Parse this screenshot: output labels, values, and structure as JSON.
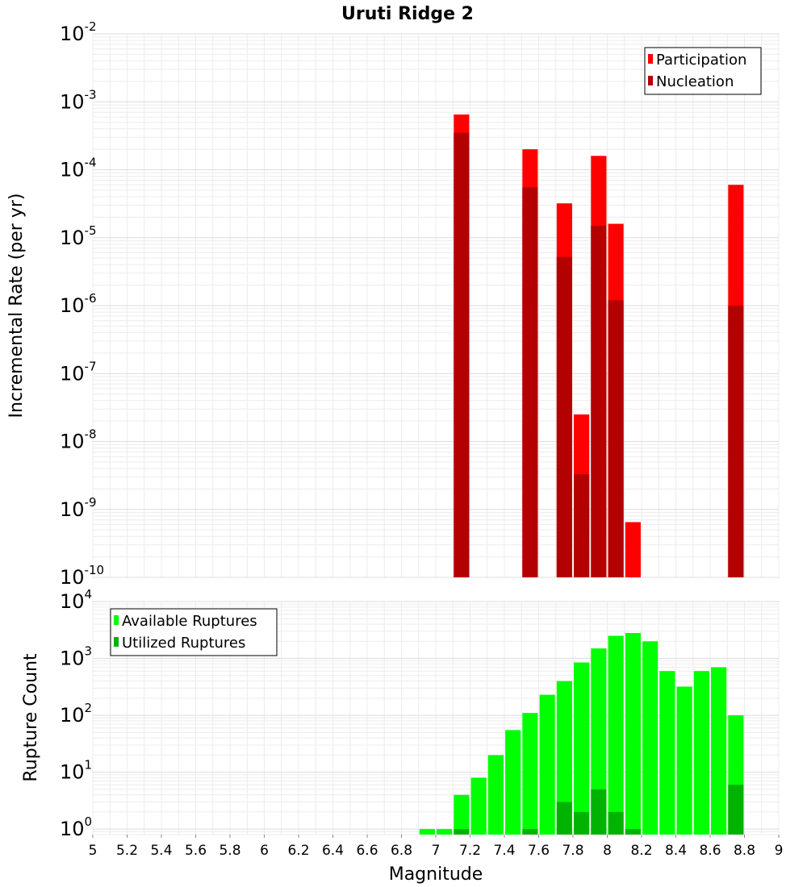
{
  "chart_data": [
    {
      "type": "bar",
      "title": "Uruti Ridge 2",
      "xlabel": "",
      "ylabel": "Incremental Rate (per yr)",
      "yscale": "log",
      "xlim": [
        5,
        9
      ],
      "ylim": [
        1e-10,
        0.01
      ],
      "legend_position": "top-right",
      "grid": true,
      "overlaid": true,
      "bar_width": 0.09,
      "series": [
        {
          "name": "Participation",
          "color": "#ff0000",
          "x": [
            7.15,
            7.55,
            7.75,
            7.85,
            7.95,
            8.05,
            8.15,
            8.75
          ],
          "values": [
            0.00065,
            0.0002,
            3.2e-05,
            2.5e-08,
            0.00016,
            1.6e-05,
            6.5e-10,
            6e-05
          ]
        },
        {
          "name": "Nucleation",
          "color": "#b30000",
          "x": [
            7.15,
            7.55,
            7.75,
            7.85,
            7.95,
            8.05,
            8.75
          ],
          "values": [
            0.00035,
            5.5e-05,
            5.2e-06,
            3.3e-09,
            1.5e-05,
            1.2e-06,
            1e-06
          ]
        }
      ]
    },
    {
      "type": "bar",
      "title": "",
      "xlabel": "Magnitude",
      "ylabel": "Rupture Count",
      "yscale": "log",
      "xlim": [
        5,
        9
      ],
      "ylim": [
        0.8,
        10000
      ],
      "legend_position": "top-left",
      "grid": true,
      "overlaid": true,
      "bar_width": 0.09,
      "x_ticks": [
        "5",
        "5.2",
        "5.4",
        "5.6",
        "5.8",
        "6",
        "6.2",
        "6.4",
        "6.6",
        "6.8",
        "7",
        "7.2",
        "7.4",
        "7.6",
        "7.8",
        "8",
        "8.2",
        "8.4",
        "8.6",
        "8.8",
        "9"
      ],
      "series": [
        {
          "name": "Available Ruptures",
          "color": "#00ff00",
          "x": [
            6.95,
            7.05,
            7.15,
            7.25,
            7.35,
            7.45,
            7.55,
            7.65,
            7.75,
            7.85,
            7.95,
            8.05,
            8.15,
            8.25,
            8.35,
            8.45,
            8.55,
            8.65,
            8.75
          ],
          "values": [
            1,
            1,
            4,
            8,
            20,
            55,
            110,
            230,
            400,
            850,
            1500,
            2500,
            2800,
            2000,
            600,
            320,
            600,
            700,
            100
          ]
        },
        {
          "name": "Utilized Ruptures",
          "color": "#00b300",
          "x": [
            7.15,
            7.55,
            7.75,
            7.85,
            7.95,
            8.05,
            8.15,
            8.75
          ],
          "values": [
            1,
            1,
            3,
            2,
            5,
            2,
            1,
            6
          ]
        }
      ]
    }
  ]
}
